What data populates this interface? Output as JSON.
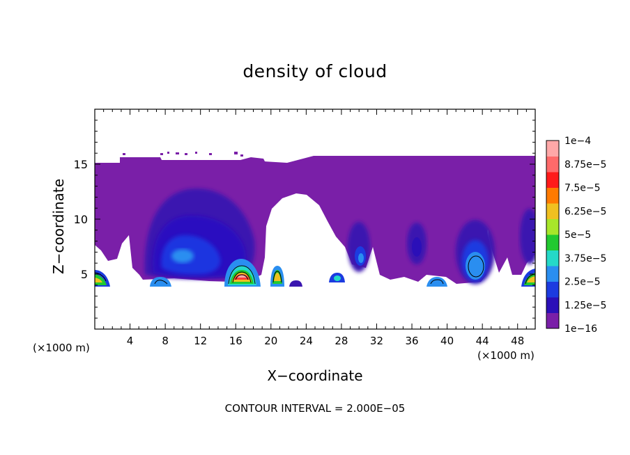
{
  "chart_data": {
    "type": "heatmap",
    "title": "density of cloud",
    "xlabel": "X−coordinate",
    "ylabel": "Z−coordinate",
    "x_unit_left": "(×1000 m)",
    "x_unit_right": "(×1000 m)",
    "footer": "CONTOUR INTERVAL = 2.000E−05",
    "xlim": [
      0,
      50
    ],
    "ylim": [
      0,
      20
    ],
    "x_ticks": [
      4,
      8,
      12,
      16,
      20,
      24,
      28,
      32,
      36,
      40,
      44,
      48
    ],
    "y_ticks": [
      5,
      10,
      15
    ],
    "colorbar": {
      "levels": [
        "1e−16",
        "1.25e−5",
        "2.5e−5",
        "3.75e−5",
        "5e−5",
        "6.25e−5",
        "7.5e−5",
        "8.75e−5",
        "1e−4"
      ],
      "colors": [
        "#7a1fa8",
        "#2b0fb8",
        "#1c3be0",
        "#2a8ef0",
        "#25d9c8",
        "#22c930",
        "#a8e62a",
        "#f0c020",
        "#ff7a00",
        "#ff1a1a",
        "#ff6a6a",
        "#ffa8a8"
      ]
    }
  }
}
